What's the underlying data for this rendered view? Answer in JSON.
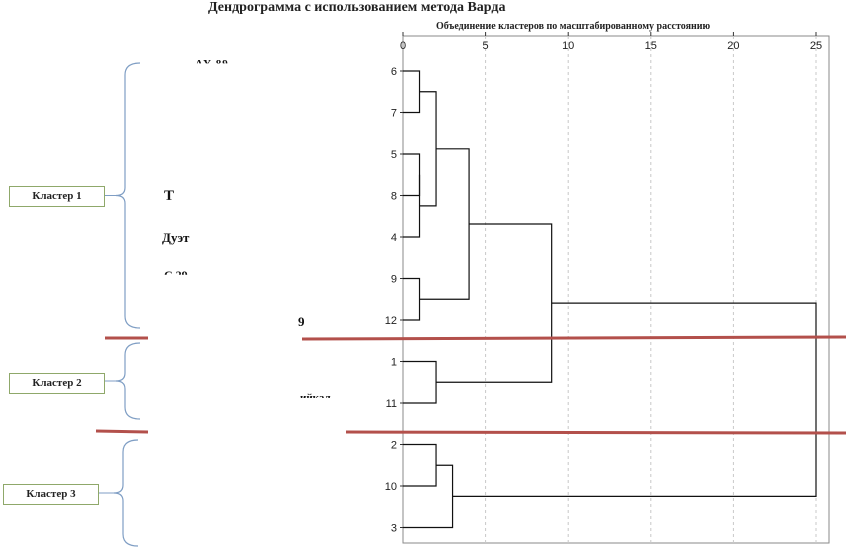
{
  "title": "Дендрограмма с использованием метода Варда",
  "chart_data": {
    "type": "dendrogram",
    "xlabel": "Объединение кластеров по масштабированному расстоянию",
    "xlim": [
      0,
      25
    ],
    "xticks": [
      0,
      5,
      10,
      15,
      20,
      25
    ],
    "leaves": [
      "6",
      "7",
      "5",
      "8",
      "4",
      "9",
      "12",
      "1",
      "11",
      "2",
      "10",
      "3"
    ],
    "merges": [
      {
        "a": "6",
        "b": "7",
        "height": 1
      },
      {
        "a": "5",
        "b": "8",
        "height": 1
      },
      {
        "a": "4",
        "b": "[5,8]",
        "height": 1
      },
      {
        "a": "9",
        "b": "12",
        "height": 1
      },
      {
        "a": "2",
        "b": "10",
        "height": 2
      },
      {
        "a": "1",
        "b": "11",
        "height": 2
      },
      {
        "a": "[6,7]",
        "b": "[4,5,8]",
        "height": 2
      },
      {
        "a": "[2,10]",
        "b": "3",
        "height": 3
      },
      {
        "a": "[4,5,6,7,8]",
        "b": "[9,12]",
        "height": 4
      },
      {
        "a": "[4,5,6,7,8,9,12]",
        "b": "[1,11]",
        "height": 9
      },
      {
        "a": "[1,4,5,6,7,8,9,11,12]",
        "b": "[2,3,10]",
        "height": 25
      }
    ],
    "grid": true,
    "clusters": [
      {
        "label": "Кластер 1"
      },
      {
        "label": "Кластер 2"
      },
      {
        "label": "Кластер 3"
      }
    ],
    "colors": {
      "line": "#111111",
      "grid": "#c8c8c8",
      "separator": "#b3504b",
      "brace": "#7f9ec4",
      "cluster_border": "#8fa86a"
    }
  },
  "visible_item_labels": [
    "Дуэт"
  ]
}
